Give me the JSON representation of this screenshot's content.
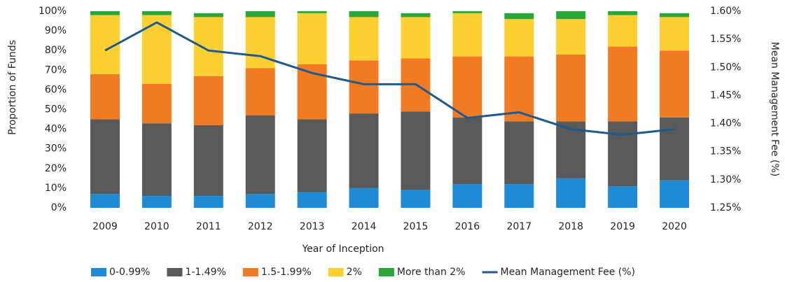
{
  "chart_data": {
    "type": "bar",
    "categories": [
      "2009",
      "2010",
      "2011",
      "2012",
      "2013",
      "2014",
      "2015",
      "2016",
      "2017",
      "2018",
      "2019",
      "2020"
    ],
    "series": [
      {
        "name": "0-0.99%",
        "color": "#1f8ad6",
        "values": [
          7,
          6,
          6,
          7,
          8,
          10,
          9,
          12,
          12,
          15,
          11,
          14
        ]
      },
      {
        "name": "1-1.49%",
        "color": "#595959",
        "values": [
          38,
          37,
          36,
          40,
          37,
          38,
          40,
          34,
          32,
          29,
          33,
          32
        ]
      },
      {
        "name": "1.5-1.99%",
        "color": "#f07b22",
        "values": [
          23,
          20,
          25,
          24,
          28,
          27,
          27,
          31,
          33,
          34,
          38,
          34
        ]
      },
      {
        "name": "2%",
        "color": "#fdd032",
        "values": [
          30,
          35,
          30,
          26,
          26,
          22,
          21,
          22,
          19,
          18,
          16,
          17
        ]
      },
      {
        "name": "More than 2%",
        "color": "#2aa63a",
        "values": [
          2,
          2,
          2,
          3,
          1,
          3,
          2,
          1,
          3,
          4,
          2,
          2
        ]
      },
      {
        "name": "Mean Management Fee (%)",
        "color": "#1f5a8e",
        "type": "line",
        "axis": "y2",
        "values": [
          1.53,
          1.58,
          1.53,
          1.52,
          1.49,
          1.47,
          1.47,
          1.41,
          1.42,
          1.39,
          1.38,
          1.39
        ]
      }
    ],
    "x_label": "Year of Inception",
    "y_label": "Proportion of Funds",
    "y2_label": "Mean Management Fee (%)",
    "ylim": [
      0,
      100
    ],
    "yticks": [
      {
        "value": 0,
        "label": "0%"
      },
      {
        "value": 10,
        "label": "10%"
      },
      {
        "value": 20,
        "label": "20%"
      },
      {
        "value": 30,
        "label": "30%"
      },
      {
        "value": 40,
        "label": "40%"
      },
      {
        "value": 50,
        "label": "50%"
      },
      {
        "value": 60,
        "label": "60%"
      },
      {
        "value": 70,
        "label": "70%"
      },
      {
        "value": 80,
        "label": "80%"
      },
      {
        "value": 90,
        "label": "90%"
      },
      {
        "value": 100,
        "label": "100%"
      }
    ],
    "y2lim": [
      1.25,
      1.6
    ],
    "y2ticks": [
      {
        "value": 1.25,
        "label": "1.25%"
      },
      {
        "value": 1.3,
        "label": "1.30%"
      },
      {
        "value": 1.35,
        "label": "1.35%"
      },
      {
        "value": 1.4,
        "label": "1.40%"
      },
      {
        "value": 1.45,
        "label": "1.45%"
      },
      {
        "value": 1.5,
        "label": "1.50%"
      },
      {
        "value": 1.55,
        "label": "1.55%"
      },
      {
        "value": 1.6,
        "label": "1.60%"
      }
    ],
    "stacked": true,
    "grid": false,
    "legend": "bottom"
  }
}
